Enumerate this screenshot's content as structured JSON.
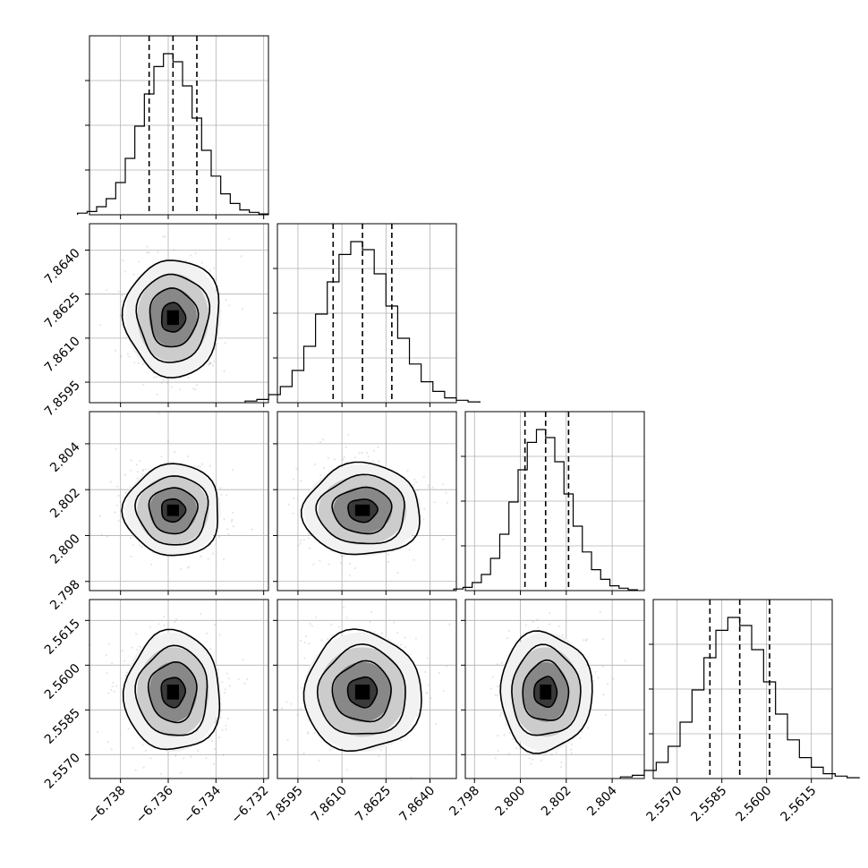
{
  "chart_data": {
    "type": "corner",
    "grid": true,
    "params": [
      {
        "id": "p1",
        "range": [
          -6.7393,
          -6.7318
        ],
        "median": -6.7358,
        "quantiles": [
          -6.7368,
          -6.7358,
          -6.7348
        ],
        "sigma": 0.001,
        "ticks": [
          "−6.738",
          "−6.736",
          "−6.734",
          "−6.732"
        ],
        "tick_values": [
          -6.738,
          -6.736,
          -6.734,
          -6.732
        ],
        "hist_yticks": [
          0.25,
          0.5,
          0.75
        ]
      },
      {
        "id": "p2",
        "range": [
          7.8588,
          7.8649
        ],
        "median": 7.8617,
        "quantiles": [
          7.8607,
          7.8617,
          7.8627
        ],
        "sigma": 0.001,
        "ticks": [
          "7.8595",
          "7.8610",
          "7.8625",
          "7.8640"
        ],
        "tick_values": [
          7.8595,
          7.861,
          7.8625,
          7.864
        ],
        "hist_yticks": [
          0.25,
          0.5,
          0.75
        ]
      },
      {
        "id": "p3",
        "range": [
          2.7976,
          2.8054
        ],
        "median": 2.8011,
        "quantiles": [
          2.8002,
          2.8011,
          2.8021
        ],
        "sigma": 0.001,
        "ticks": [
          "2.798",
          "2.800",
          "2.802",
          "2.804"
        ],
        "tick_values": [
          2.798,
          2.8,
          2.802,
          2.804
        ],
        "hist_yticks": [
          0.25,
          0.5,
          0.75
        ]
      },
      {
        "id": "p4",
        "range": [
          2.5562,
          2.5622
        ],
        "median": 2.5591,
        "quantiles": [
          2.5581,
          2.5591,
          2.5601
        ],
        "sigma": 0.001,
        "ticks": [
          "2.5570",
          "2.5585",
          "2.5600",
          "2.5615"
        ],
        "tick_values": [
          2.557,
          2.5585,
          2.56,
          2.5615
        ],
        "hist_yticks": [
          0.25,
          0.5,
          0.75
        ]
      }
    ],
    "histogram_density": [
      0.01,
      0.02,
      0.05,
      0.1,
      0.2,
      0.35,
      0.55,
      0.75,
      0.92,
      1.0,
      0.95,
      0.8,
      0.6,
      0.4,
      0.24,
      0.13,
      0.07,
      0.03,
      0.015,
      0.005
    ],
    "contour_levels_sigma": [
      0.5,
      1.0,
      1.5,
      2.0
    ],
    "scatter_points_per_panel": 420
  }
}
